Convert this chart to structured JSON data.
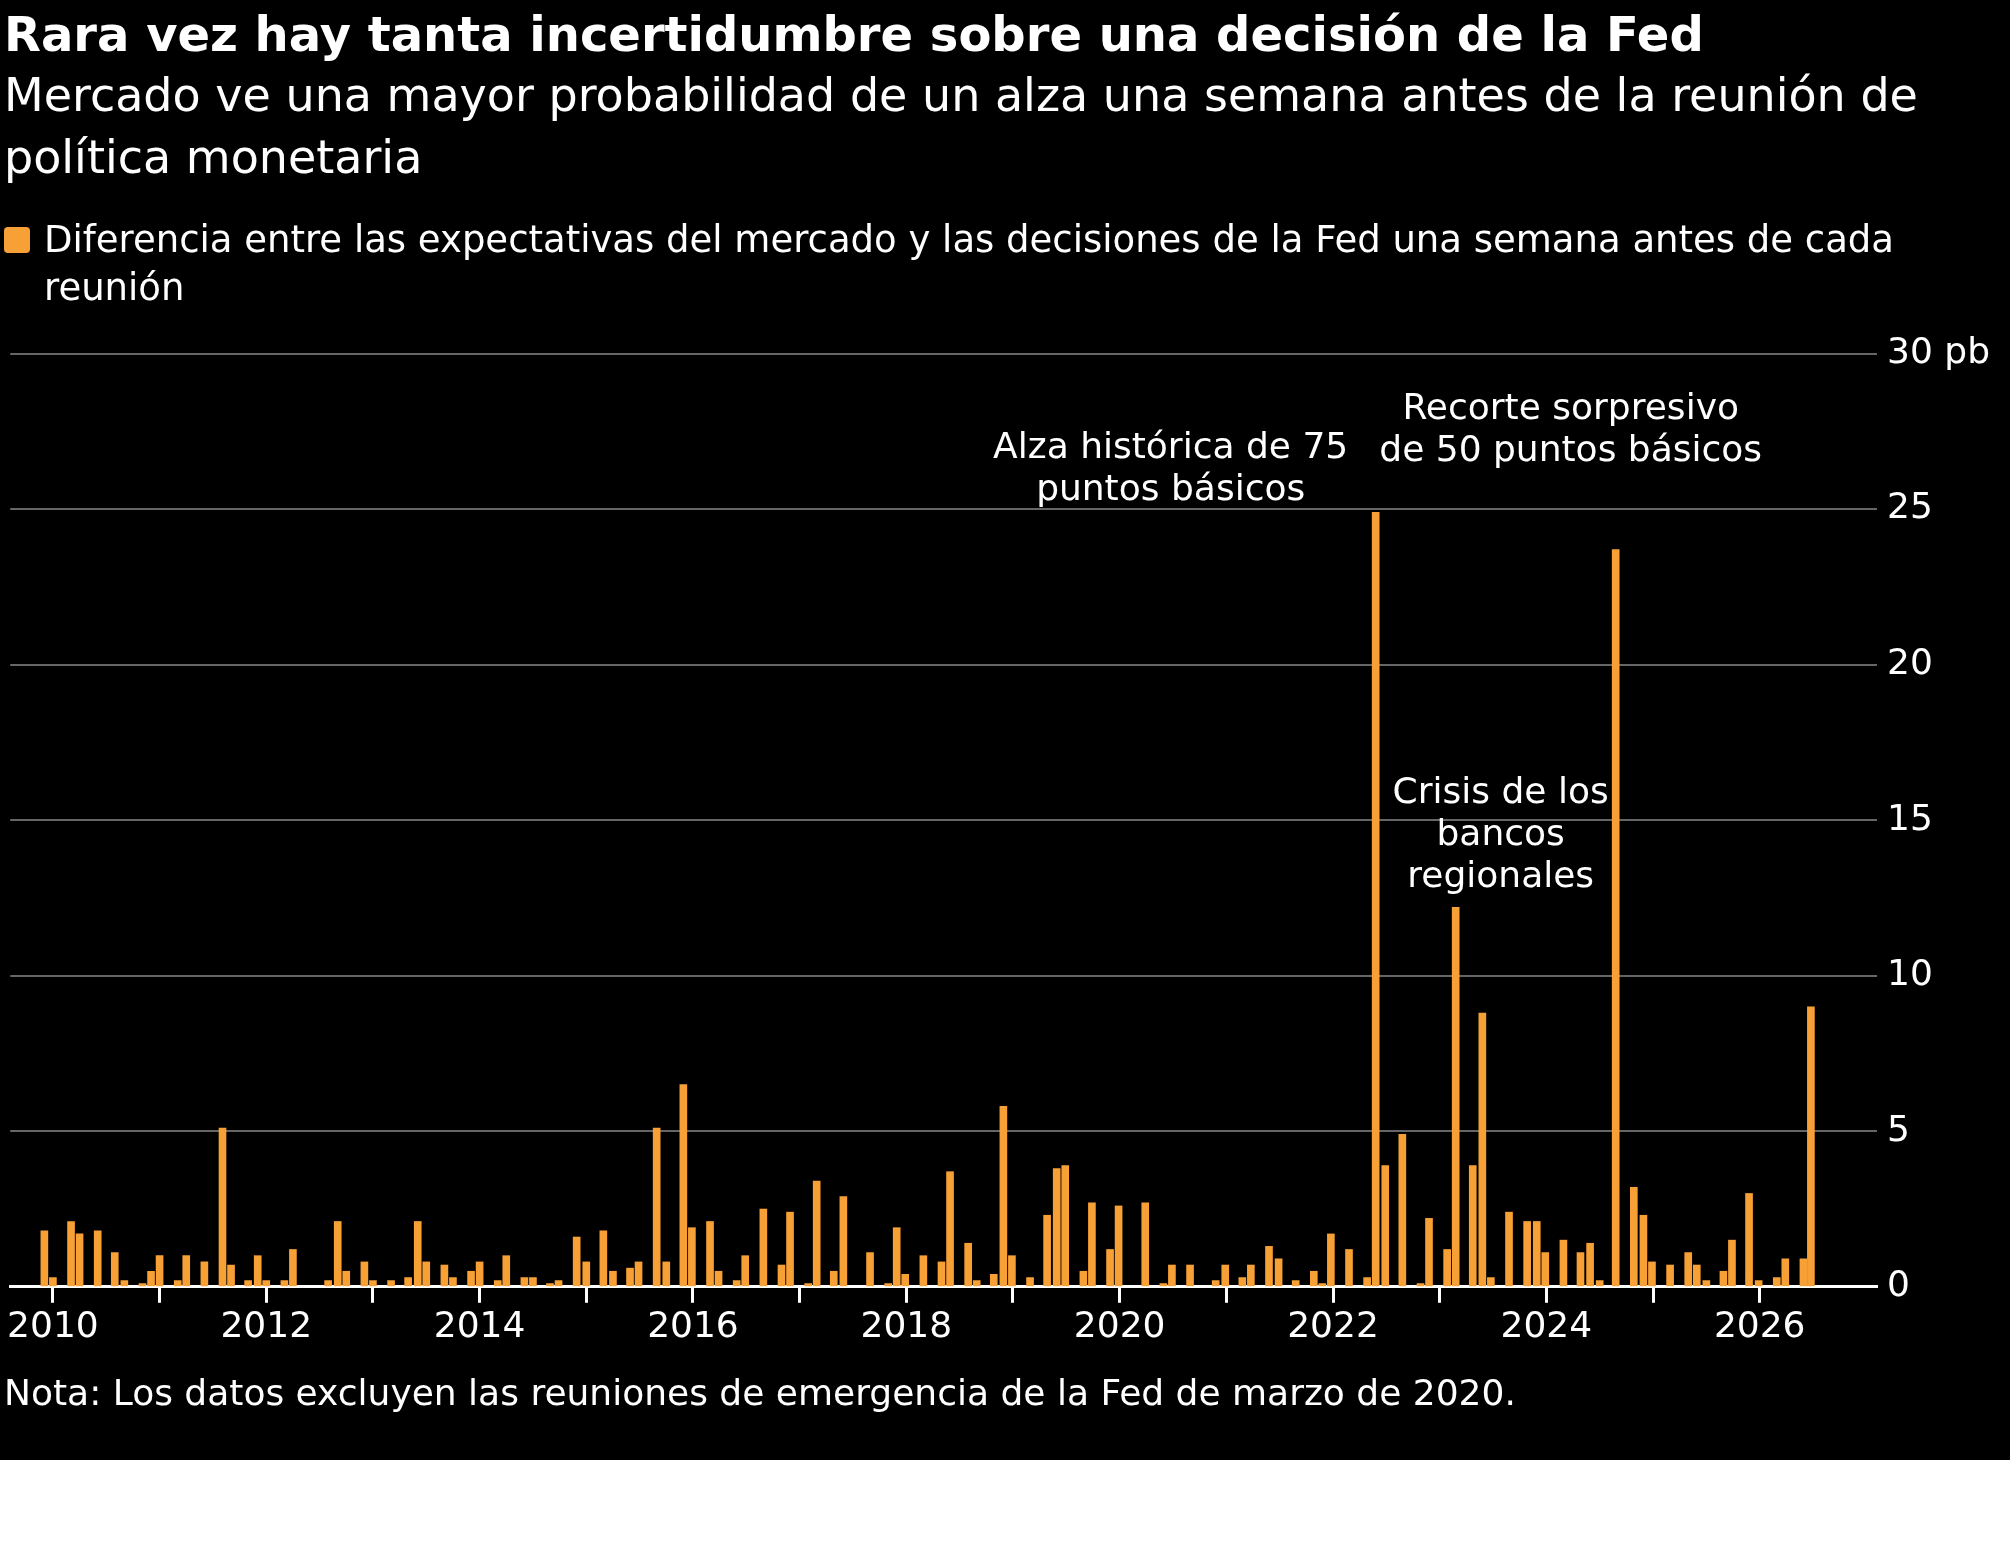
{
  "chart_data": {
    "type": "bar",
    "title": "Rara vez hay tanta incertidumbre sobre una decisión de la Fed",
    "subtitle": "Mercado ve una mayor probabilidad de un alza una semana antes de la reunión de política monetaria",
    "x": [
      2009.92,
      2010.0,
      2010.17,
      2010.25,
      2010.42,
      2010.58,
      2010.67,
      2010.84,
      2010.92,
      2011.0,
      2011.17,
      2011.25,
      2011.42,
      2011.59,
      2011.67,
      2011.83,
      2011.92,
      2012.0,
      2012.17,
      2012.25,
      2012.58,
      2012.67,
      2012.75,
      2012.92,
      2013.0,
      2013.17,
      2013.33,
      2013.42,
      2013.5,
      2013.67,
      2013.75,
      2013.92,
      2014.0,
      2014.17,
      2014.25,
      2014.42,
      2014.5,
      2014.66,
      2014.74,
      2014.91,
      2015.0,
      2015.16,
      2015.25,
      2015.41,
      2015.49,
      2015.66,
      2015.75,
      2015.91,
      2015.99,
      2016.16,
      2016.24,
      2016.41,
      2016.49,
      2016.66,
      2016.83,
      2016.91,
      2017.08,
      2017.16,
      2017.32,
      2017.41,
      2017.66,
      2017.83,
      2017.91,
      2017.99,
      2018.16,
      2018.33,
      2018.41,
      2018.58,
      2018.66,
      2018.82,
      2018.91,
      2018.99,
      2019.16,
      2019.32,
      2019.41,
      2019.49,
      2019.66,
      2019.74,
      2019.91,
      2019.99,
      2020.24,
      2020.41,
      2020.49,
      2020.66,
      2020.9,
      2020.99,
      2021.15,
      2021.23,
      2021.4,
      2021.49,
      2021.65,
      2021.82,
      2021.9,
      2021.98,
      2022.15,
      2022.32,
      2022.4,
      2022.49,
      2022.65,
      2022.82,
      2022.9,
      2023.07,
      2023.15,
      2023.31,
      2023.4,
      2023.48,
      2023.65,
      2023.82,
      2023.91,
      2023.99,
      2024.16,
      2024.32,
      2024.41,
      2024.5,
      2024.65,
      2024.82,
      2024.91,
      2024.99,
      2025.16,
      2025.33,
      2025.41,
      2025.5,
      2025.66,
      2025.74,
      2025.9,
      2025.99,
      2026.16,
      2026.24,
      2026.41,
      2026.48
    ],
    "series": [
      {
        "name": "Diferencia entre las expectativas del mercado y las decisiones de la Fed una semana antes de cada reunión",
        "color": "#f7a035",
        "values": [
          1.8,
          0.3,
          2.1,
          1.7,
          1.8,
          1.1,
          0.2,
          0.1,
          0.5,
          1.0,
          0.2,
          1.0,
          0.8,
          5.1,
          0.7,
          0.2,
          1.0,
          0.2,
          0.2,
          1.2,
          0.2,
          2.1,
          0.5,
          0.8,
          0.2,
          0.2,
          0.3,
          2.1,
          0.8,
          0.7,
          0.3,
          0.5,
          0.8,
          0.2,
          1.0,
          0.3,
          0.3,
          0.1,
          0.2,
          1.6,
          0.8,
          1.8,
          0.5,
          0.6,
          0.8,
          5.1,
          0.8,
          6.5,
          1.9,
          2.1,
          0.5,
          0.2,
          1.0,
          2.5,
          0.7,
          2.4,
          0.1,
          3.4,
          0.5,
          2.9,
          1.1,
          0.1,
          1.9,
          0.4,
          1.0,
          0.8,
          3.7,
          1.4,
          0.2,
          0.4,
          5.8,
          1.0,
          0.3,
          2.3,
          3.8,
          3.9,
          0.5,
          2.7,
          1.2,
          2.6,
          2.7,
          0.1,
          0.7,
          0.7,
          0.2,
          0.7,
          0.3,
          0.7,
          1.3,
          0.9,
          0.2,
          0.5,
          0.1,
          1.7,
          1.2,
          0.3,
          24.9,
          3.9,
          4.9,
          0.1,
          2.2,
          1.2,
          12.2,
          3.9,
          8.8,
          0.3,
          2.4,
          2.1,
          2.1,
          1.1,
          1.5,
          1.1,
          1.4,
          0.2,
          23.7,
          3.2,
          2.3,
          0.8,
          0.7,
          1.1,
          0.7,
          0.2,
          0.5,
          1.5,
          3.0,
          0.2,
          0.3,
          0.9,
          0.9,
          9.0
        ]
      }
    ],
    "xlim": [
      2009.6,
      2027.1
    ],
    "xticks": [
      2010,
      {
        "value": 2011,
        "label": null
      },
      2012,
      {
        "value": 2013,
        "label": null
      },
      2014,
      {
        "value": 2015,
        "label": null
      },
      2016,
      {
        "value": 2017,
        "label": null
      },
      2018,
      {
        "value": 2019,
        "label": null
      },
      2020,
      {
        "value": 2021,
        "label": null
      },
      2022,
      {
        "value": 2023,
        "label": null
      },
      2024,
      {
        "value": 2025,
        "label": null
      },
      2026
    ],
    "ylim": [
      0,
      30
    ],
    "yticks": [
      0,
      5,
      10,
      15,
      20,
      25,
      {
        "value": 30,
        "label": "30 pb"
      }
    ],
    "grid": "y",
    "legend": "top left",
    "annotations": [
      {
        "text": "Alza histórica de 75 puntos básicos",
        "x": 2022.4,
        "y": 24.9
      },
      {
        "text": "Recorte sorpresivo de 50 puntos básicos",
        "x": 2024.65,
        "y": 23.7
      },
      {
        "text": "Crisis de los bancos regionales",
        "x": 2023.15,
        "y": 12.2
      },
      "Nota: Los datos excluyen las reuniones de emergencia de la Fed de marzo de 2020."
    ]
  }
}
